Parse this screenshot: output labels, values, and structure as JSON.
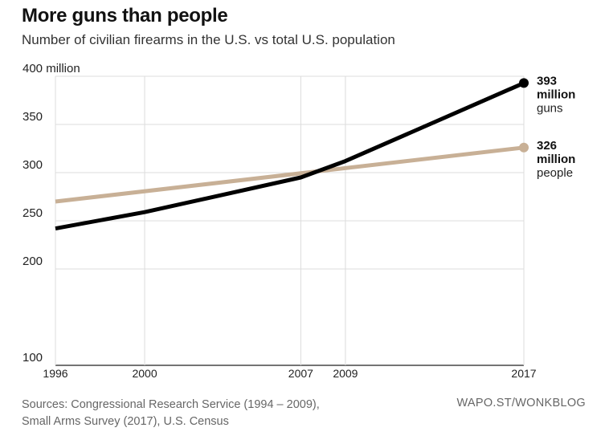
{
  "header": {
    "title": "More guns than people",
    "subtitle": "Number of civilian firearms in the U.S. vs total U.S. population"
  },
  "footer": {
    "source_line1": "Sources: Congressional Research Service (1994 – 2009),",
    "source_line2": "Small Arms Survey (2017), U.S. Census",
    "credit": "WAPO.ST/WONKBLOG"
  },
  "chart_data": {
    "type": "line",
    "title": "More guns than people",
    "subtitle": "Number of civilian firearms in the U.S. vs total U.S. population",
    "xlabel": "",
    "ylabel": "",
    "xlim": [
      1996,
      2017
    ],
    "ylim": [
      100,
      400
    ],
    "x_ticks": [
      1996,
      2000,
      2007,
      2009,
      2017
    ],
    "y_ticks": [
      100,
      200,
      250,
      300,
      350,
      400
    ],
    "y_tick_labels": [
      "100",
      "200",
      "250",
      "300",
      "350",
      "400 million"
    ],
    "grid": true,
    "series": [
      {
        "name": "guns",
        "color": "#000000",
        "x": [
          1996,
          2000,
          2007,
          2009,
          2017
        ],
        "values": [
          242,
          259,
          295,
          312,
          393
        ],
        "end_label": {
          "value": "393",
          "unit": "million",
          "name": "guns"
        }
      },
      {
        "name": "people",
        "color": "#c8b096",
        "x": [
          1996,
          2017
        ],
        "values": [
          270,
          326
        ],
        "end_label": {
          "value": "326",
          "unit": "million",
          "name": "people"
        }
      }
    ]
  }
}
